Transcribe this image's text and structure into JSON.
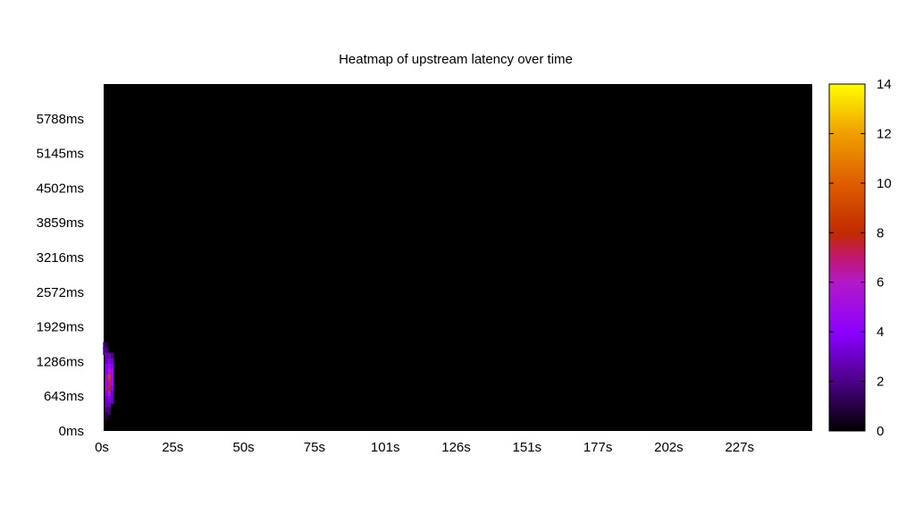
{
  "chart_data": {
    "type": "heatmap",
    "title": "Heatmap of upstream latency over time",
    "xlabel": "",
    "ylabel": "",
    "x_ticks": [
      "0s",
      "25s",
      "50s",
      "75s",
      "101s",
      "126s",
      "151s",
      "177s",
      "202s",
      "227s"
    ],
    "y_ticks": [
      "0ms",
      "643ms",
      "1286ms",
      "1929ms",
      "2572ms",
      "3216ms",
      "3859ms",
      "4502ms",
      "5145ms",
      "5788ms"
    ],
    "colorbar": {
      "ticks": [
        "0",
        "2",
        "4",
        "6",
        "8",
        "10",
        "12",
        "14"
      ],
      "min": 0,
      "max": 14
    },
    "background": "#000000",
    "cells": [
      {
        "x_s": 0.3,
        "y_ms": 1570,
        "v": 2
      },
      {
        "x_s": 1.0,
        "y_ms": 1570,
        "v": 1
      },
      {
        "x_s": 0.3,
        "y_ms": 1470,
        "v": 2
      },
      {
        "x_s": 1.0,
        "y_ms": 1470,
        "v": 2
      },
      {
        "x_s": 1.0,
        "y_ms": 1370,
        "v": 3
      },
      {
        "x_s": 2.0,
        "y_ms": 1370,
        "v": 3
      },
      {
        "x_s": 3.0,
        "y_ms": 1370,
        "v": 2
      },
      {
        "x_s": 1.0,
        "y_ms": 1270,
        "v": 3
      },
      {
        "x_s": 2.0,
        "y_ms": 1270,
        "v": 4
      },
      {
        "x_s": 3.0,
        "y_ms": 1270,
        "v": 3
      },
      {
        "x_s": 1.0,
        "y_ms": 1170,
        "v": 4
      },
      {
        "x_s": 2.0,
        "y_ms": 1170,
        "v": 5
      },
      {
        "x_s": 3.0,
        "y_ms": 1170,
        "v": 4
      },
      {
        "x_s": 1.0,
        "y_ms": 1070,
        "v": 4
      },
      {
        "x_s": 2.0,
        "y_ms": 1070,
        "v": 6
      },
      {
        "x_s": 3.0,
        "y_ms": 1070,
        "v": 5
      },
      {
        "x_s": 1.0,
        "y_ms": 970,
        "v": 5
      },
      {
        "x_s": 2.0,
        "y_ms": 970,
        "v": 9
      },
      {
        "x_s": 3.0,
        "y_ms": 970,
        "v": 5
      },
      {
        "x_s": 1.0,
        "y_ms": 870,
        "v": 5
      },
      {
        "x_s": 2.0,
        "y_ms": 870,
        "v": 7
      },
      {
        "x_s": 3.0,
        "y_ms": 870,
        "v": 5
      },
      {
        "x_s": 1.0,
        "y_ms": 770,
        "v": 5
      },
      {
        "x_s": 2.0,
        "y_ms": 770,
        "v": 8
      },
      {
        "x_s": 3.0,
        "y_ms": 770,
        "v": 4
      },
      {
        "x_s": 1.0,
        "y_ms": 670,
        "v": 4
      },
      {
        "x_s": 2.0,
        "y_ms": 670,
        "v": 6
      },
      {
        "x_s": 3.0,
        "y_ms": 670,
        "v": 3
      },
      {
        "x_s": 1.0,
        "y_ms": 570,
        "v": 3
      },
      {
        "x_s": 2.0,
        "y_ms": 570,
        "v": 4
      },
      {
        "x_s": 3.0,
        "y_ms": 570,
        "v": 3
      },
      {
        "x_s": 1.0,
        "y_ms": 470,
        "v": 3
      },
      {
        "x_s": 2.0,
        "y_ms": 470,
        "v": 3
      },
      {
        "x_s": 1.0,
        "y_ms": 370,
        "v": 2
      },
      {
        "x_s": 2.0,
        "y_ms": 370,
        "v": 2
      },
      {
        "x_s": 1.0,
        "y_ms": 270,
        "v": 1
      }
    ]
  }
}
